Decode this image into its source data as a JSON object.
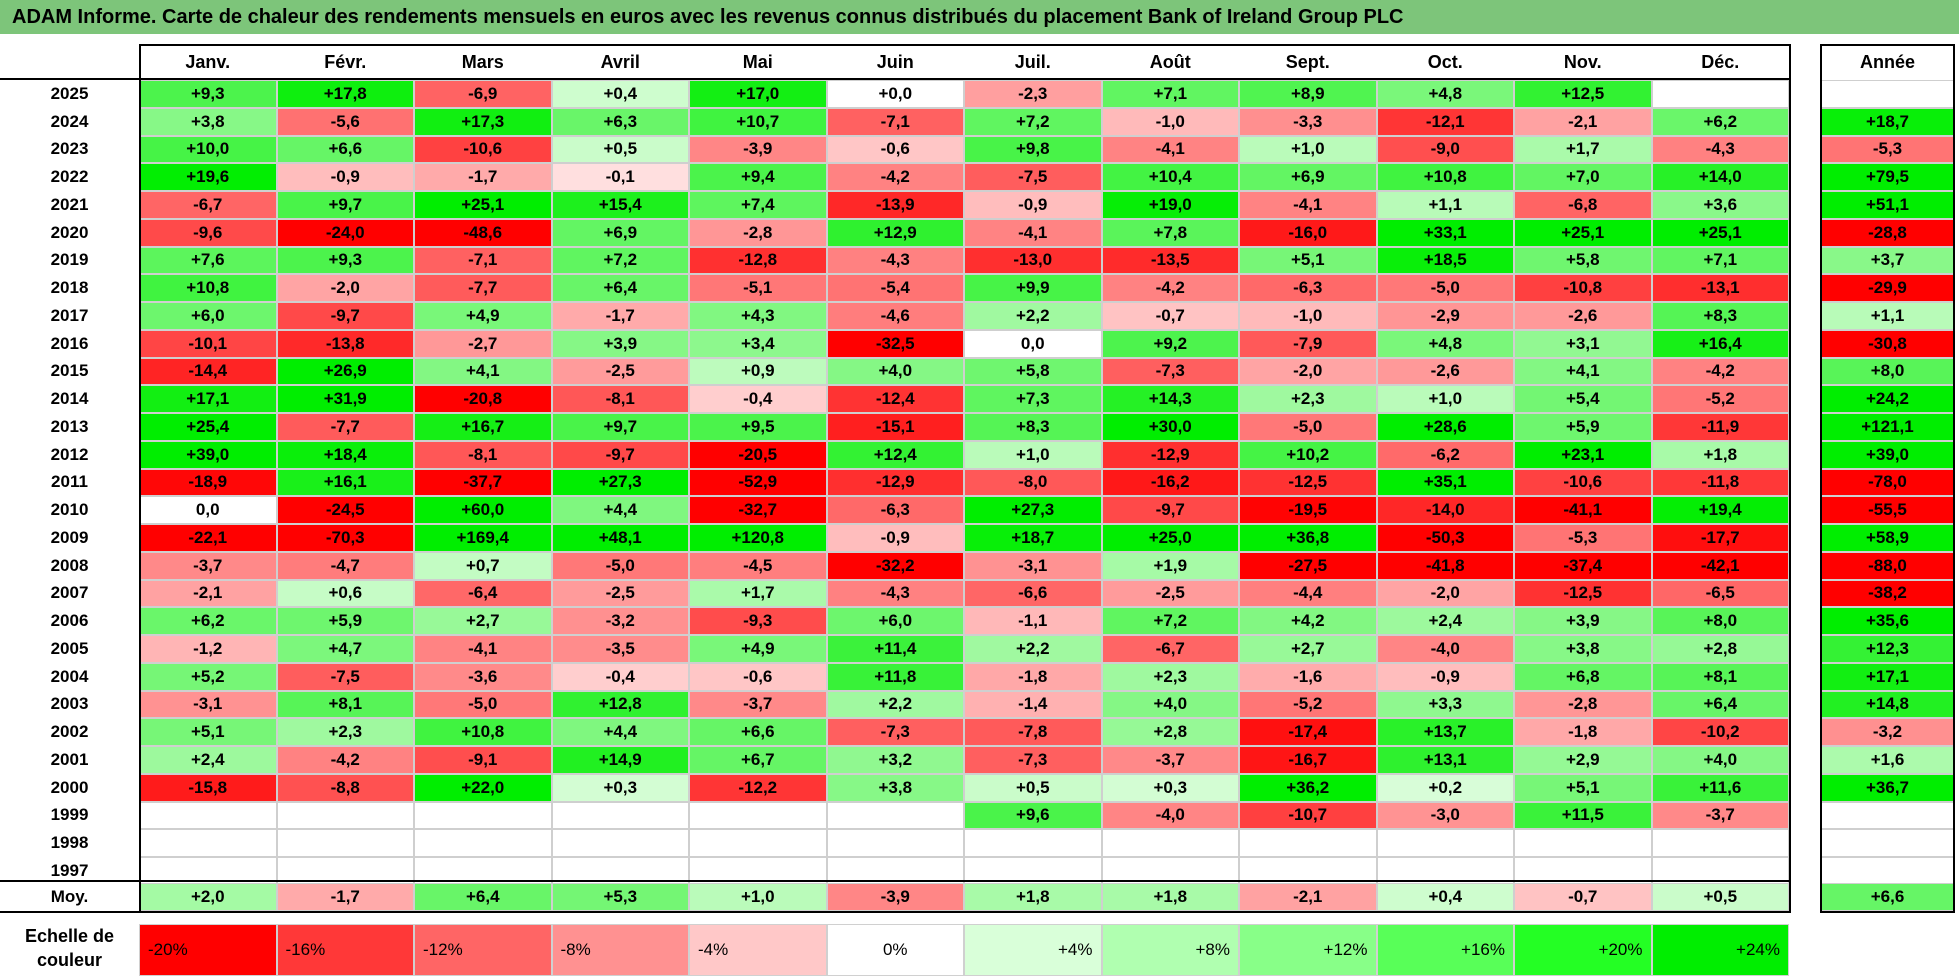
{
  "title": "ADAM Informe. Carte de chaleur des rendements mensuels en euros avec les revenus connus distribués du placement Bank of Ireland Group PLC",
  "chart_data": {
    "type": "heatmap",
    "title": "ADAM Informe. Carte de chaleur des rendements mensuels en euros avec les revenus connus distribués du placement Bank of Ireland Group PLC",
    "columns": [
      "Janv.",
      "Févr.",
      "Mars",
      "Avril",
      "Mai",
      "Juin",
      "Juil.",
      "Août",
      "Sept.",
      "Oct.",
      "Nov.",
      "Déc."
    ],
    "year_column_label": "Année",
    "rows": [
      {
        "year": "2025",
        "values": [
          "+9,3",
          "+17,8",
          "-6,9",
          "+0,4",
          "+17,0",
          "+0,0",
          "-2,3",
          "+7,1",
          "+8,9",
          "+4,8",
          "+12,5",
          ""
        ],
        "annual": ""
      },
      {
        "year": "2024",
        "values": [
          "+3,8",
          "-5,6",
          "+17,3",
          "+6,3",
          "+10,7",
          "-7,1",
          "+7,2",
          "-1,0",
          "-3,3",
          "-12,1",
          "-2,1",
          "+6,2"
        ],
        "annual": "+18,7"
      },
      {
        "year": "2023",
        "values": [
          "+10,0",
          "+6,6",
          "-10,6",
          "+0,5",
          "-3,9",
          "-0,6",
          "+9,8",
          "-4,1",
          "+1,0",
          "-9,0",
          "+1,7",
          "-4,3"
        ],
        "annual": "-5,3"
      },
      {
        "year": "2022",
        "values": [
          "+19,6",
          "-0,9",
          "-1,7",
          "-0,1",
          "+9,4",
          "-4,2",
          "-7,5",
          "+10,4",
          "+6,9",
          "+10,8",
          "+7,0",
          "+14,0"
        ],
        "annual": "+79,5"
      },
      {
        "year": "2021",
        "values": [
          "-6,7",
          "+9,7",
          "+25,1",
          "+15,4",
          "+7,4",
          "-13,9",
          "-0,9",
          "+19,0",
          "-4,1",
          "+1,1",
          "-6,8",
          "+3,6"
        ],
        "annual": "+51,1"
      },
      {
        "year": "2020",
        "values": [
          "-9,6",
          "-24,0",
          "-48,6",
          "+6,9",
          "-2,8",
          "+12,9",
          "-4,1",
          "+7,8",
          "-16,0",
          "+33,1",
          "+25,1",
          "+25,1"
        ],
        "annual": "-28,8"
      },
      {
        "year": "2019",
        "values": [
          "+7,6",
          "+9,3",
          "-7,1",
          "+7,2",
          "-12,8",
          "-4,3",
          "-13,0",
          "-13,5",
          "+5,1",
          "+18,5",
          "+5,8",
          "+7,1"
        ],
        "annual": "+3,7"
      },
      {
        "year": "2018",
        "values": [
          "+10,8",
          "-2,0",
          "-7,7",
          "+6,4",
          "-5,1",
          "-5,4",
          "+9,9",
          "-4,2",
          "-6,3",
          "-5,0",
          "-10,8",
          "-13,1"
        ],
        "annual": "-29,9"
      },
      {
        "year": "2017",
        "values": [
          "+6,0",
          "-9,7",
          "+4,9",
          "-1,7",
          "+4,3",
          "-4,6",
          "+2,2",
          "-0,7",
          "-1,0",
          "-2,9",
          "-2,6",
          "+8,3"
        ],
        "annual": "+1,1"
      },
      {
        "year": "2016",
        "values": [
          "-10,1",
          "-13,8",
          "-2,7",
          "+3,9",
          "+3,4",
          "-32,5",
          "0,0",
          "+9,2",
          "-7,9",
          "+4,8",
          "+3,1",
          "+16,4"
        ],
        "annual": "-30,8"
      },
      {
        "year": "2015",
        "values": [
          "-14,4",
          "+26,9",
          "+4,1",
          "-2,5",
          "+0,9",
          "+4,0",
          "+5,8",
          "-7,3",
          "-2,0",
          "-2,6",
          "+4,1",
          "-4,2"
        ],
        "annual": "+8,0"
      },
      {
        "year": "2014",
        "values": [
          "+17,1",
          "+31,9",
          "-20,8",
          "-8,1",
          "-0,4",
          "-12,4",
          "+7,3",
          "+14,3",
          "+2,3",
          "+1,0",
          "+5,4",
          "-5,2"
        ],
        "annual": "+24,2"
      },
      {
        "year": "2013",
        "values": [
          "+25,4",
          "-7,7",
          "+16,7",
          "+9,7",
          "+9,5",
          "-15,1",
          "+8,3",
          "+30,0",
          "-5,0",
          "+28,6",
          "+5,9",
          "-11,9"
        ],
        "annual": "+121,1"
      },
      {
        "year": "2012",
        "values": [
          "+39,0",
          "+18,4",
          "-8,1",
          "-9,7",
          "-20,5",
          "+12,4",
          "+1,0",
          "-12,9",
          "+10,2",
          "-6,2",
          "+23,1",
          "+1,8"
        ],
        "annual": "+39,0"
      },
      {
        "year": "2011",
        "values": [
          "-18,9",
          "+16,1",
          "-37,7",
          "+27,3",
          "-52,9",
          "-12,9",
          "-8,0",
          "-16,2",
          "-12,5",
          "+35,1",
          "-10,6",
          "-11,8"
        ],
        "annual": "-78,0"
      },
      {
        "year": "2010",
        "values": [
          "0,0",
          "-24,5",
          "+60,0",
          "+4,4",
          "-32,7",
          "-6,3",
          "+27,3",
          "-9,7",
          "-19,5",
          "-14,0",
          "-41,1",
          "+19,4"
        ],
        "annual": "-55,5"
      },
      {
        "year": "2009",
        "values": [
          "-22,1",
          "-70,3",
          "+169,4",
          "+48,1",
          "+120,8",
          "-0,9",
          "+18,7",
          "+25,0",
          "+36,8",
          "-50,3",
          "-5,3",
          "-17,7"
        ],
        "annual": "+58,9"
      },
      {
        "year": "2008",
        "values": [
          "-3,7",
          "-4,7",
          "+0,7",
          "-5,0",
          "-4,5",
          "-32,2",
          "-3,1",
          "+1,9",
          "-27,5",
          "-41,8",
          "-37,4",
          "-42,1"
        ],
        "annual": "-88,0"
      },
      {
        "year": "2007",
        "values": [
          "-2,1",
          "+0,6",
          "-6,4",
          "-2,5",
          "+1,7",
          "-4,3",
          "-6,6",
          "-2,5",
          "-4,4",
          "-2,0",
          "-12,5",
          "-6,5"
        ],
        "annual": "-38,2"
      },
      {
        "year": "2006",
        "values": [
          "+6,2",
          "+5,9",
          "+2,7",
          "-3,2",
          "-9,3",
          "+6,0",
          "-1,1",
          "+7,2",
          "+4,2",
          "+2,4",
          "+3,9",
          "+8,0"
        ],
        "annual": "+35,6"
      },
      {
        "year": "2005",
        "values": [
          "-1,2",
          "+4,7",
          "-4,1",
          "-3,5",
          "+4,9",
          "+11,4",
          "+2,2",
          "-6,7",
          "+2,7",
          "-4,0",
          "+3,8",
          "+2,8"
        ],
        "annual": "+12,3"
      },
      {
        "year": "2004",
        "values": [
          "+5,2",
          "-7,5",
          "-3,6",
          "-0,4",
          "-0,6",
          "+11,8",
          "-1,8",
          "+2,3",
          "-1,6",
          "-0,9",
          "+6,8",
          "+8,1"
        ],
        "annual": "+17,1"
      },
      {
        "year": "2003",
        "values": [
          "-3,1",
          "+8,1",
          "-5,0",
          "+12,8",
          "-3,7",
          "+2,2",
          "-1,4",
          "+4,0",
          "-5,2",
          "+3,3",
          "-2,8",
          "+6,4"
        ],
        "annual": "+14,8"
      },
      {
        "year": "2002",
        "values": [
          "+5,1",
          "+2,3",
          "+10,8",
          "+4,4",
          "+6,6",
          "-7,3",
          "-7,8",
          "+2,8",
          "-17,4",
          "+13,7",
          "-1,8",
          "-10,2"
        ],
        "annual": "-3,2"
      },
      {
        "year": "2001",
        "values": [
          "+2,4",
          "-4,2",
          "-9,1",
          "+14,9",
          "+6,7",
          "+3,2",
          "-7,3",
          "-3,7",
          "-16,7",
          "+13,1",
          "+2,9",
          "+4,0"
        ],
        "annual": "+1,6"
      },
      {
        "year": "2000",
        "values": [
          "-15,8",
          "-8,8",
          "+22,0",
          "+0,3",
          "-12,2",
          "+3,8",
          "+0,5",
          "+0,3",
          "+36,2",
          "+0,2",
          "+5,1",
          "+11,6"
        ],
        "annual": "+36,7"
      },
      {
        "year": "1999",
        "values": [
          "",
          "",
          "",
          "",
          "",
          "",
          "+9,6",
          "-4,0",
          "-10,7",
          "-3,0",
          "+11,5",
          "-3,7"
        ],
        "annual": ""
      },
      {
        "year": "1998",
        "values": [
          "",
          "",
          "",
          "",
          "",
          "",
          "",
          "",
          "",
          "",
          "",
          ""
        ],
        "annual": ""
      },
      {
        "year": "1997",
        "values": [
          "",
          "",
          "",
          "",
          "",
          "",
          "",
          "",
          "",
          "",
          "",
          ""
        ],
        "annual": ""
      }
    ],
    "average": {
      "label": "Moy.",
      "values": [
        "+2,0",
        "-1,7",
        "+6,4",
        "+5,3",
        "+1,0",
        "-3,9",
        "+1,8",
        "+1,8",
        "-2,1",
        "+0,4",
        "-0,7",
        "+0,5"
      ],
      "annual": "+6,6"
    },
    "color_scale": {
      "label": "Echelle de couleur",
      "stops": [
        "-20%",
        "-16%",
        "-12%",
        "-8%",
        "-4%",
        "0%",
        "+4%",
        "+8%",
        "+12%",
        "+16%",
        "+20%",
        "+24%"
      ],
      "colors": [
        "#ff0000",
        "#ff3838",
        "#ff6565",
        "#ff9191",
        "#ffc8c8",
        "#ffffff",
        "#d9ffd9",
        "#b0ffb0",
        "#88ff88",
        "#58ff58",
        "#24ff24",
        "#00ee00"
      ]
    }
  }
}
